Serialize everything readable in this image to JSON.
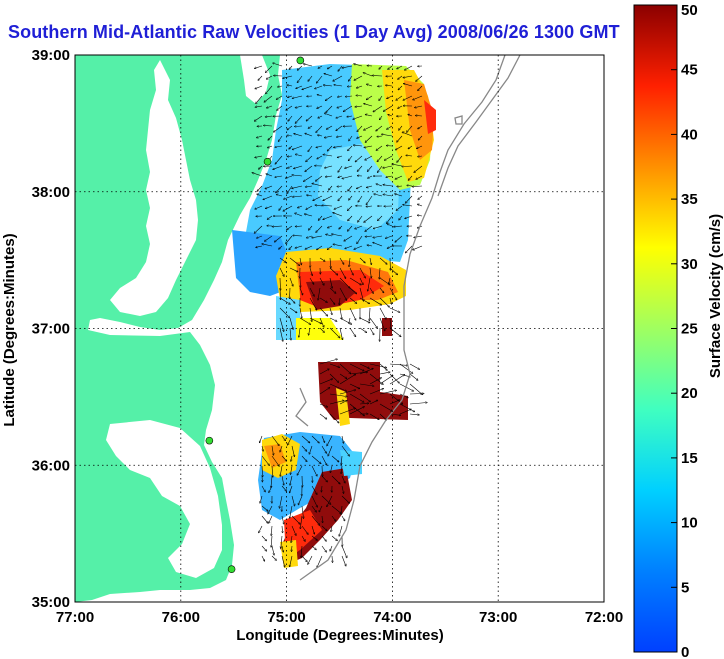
{
  "title": "Southern Mid-Atlantic Raw Velocities (1 Day Avg) 2008/06/26 1300 GMT",
  "map": {
    "xlabel": "Longitude (Degrees:Minutes)",
    "ylabel": "Latitude (Degrees:Minutes)",
    "x_ticks": [
      "77:00",
      "76:00",
      "75:00",
      "74:00",
      "73:00",
      "72:00"
    ],
    "y_ticks": [
      "39:00",
      "38:00",
      "37:00",
      "36:00",
      "35:00"
    ],
    "lon_range": [
      -77,
      -72
    ],
    "lat_range": [
      35,
      39
    ],
    "land_color": "#55f0a8",
    "gridlines": "dotted"
  },
  "colorbar": {
    "label": "Surface Velocity (cm/s)",
    "min": 0,
    "max": 50,
    "ticks": [
      "0",
      "5",
      "10",
      "15",
      "20",
      "25",
      "30",
      "35",
      "40",
      "45",
      "50"
    ],
    "colormap": "jet"
  },
  "stations": [
    {
      "lon": -74.87,
      "lat": 38.96
    },
    {
      "lon": -75.18,
      "lat": 38.22
    },
    {
      "lon": -75.73,
      "lat": 36.18
    },
    {
      "lon": -75.52,
      "lat": 35.24
    }
  ]
}
